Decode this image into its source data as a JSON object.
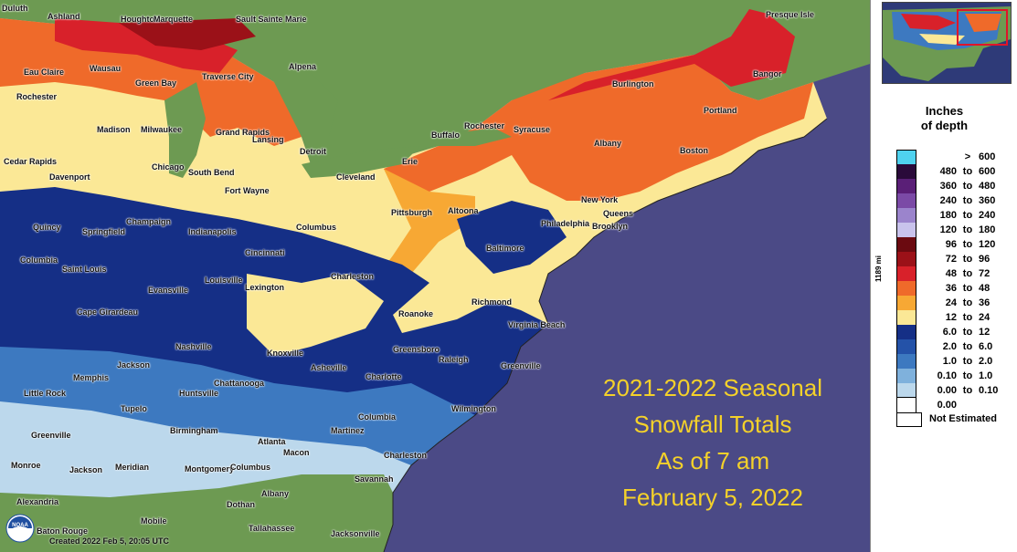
{
  "title": {
    "line1": "2021-2022 Seasonal",
    "line2": "Snowfall Totals",
    "line3": "As of 7 am",
    "line4": "February 5, 2022"
  },
  "created_text": "Created 2022 Feb 5, 20:05 UTC",
  "logo_text": "NOAA",
  "scale_label": "1189 mi",
  "legend": {
    "title_line1": "Inches",
    "title_line2": "of depth",
    "not_estimated": "Not Estimated",
    "rows": [
      {
        "lo": "",
        "to": ">",
        "hi": "600",
        "color": "#4fd2ef"
      },
      {
        "lo": "480",
        "to": "to",
        "hi": "600",
        "color": "#2a0a3a"
      },
      {
        "lo": "360",
        "to": "to",
        "hi": "480",
        "color": "#5a1f77"
      },
      {
        "lo": "240",
        "to": "to",
        "hi": "360",
        "color": "#7b4aa6"
      },
      {
        "lo": "180",
        "to": "to",
        "hi": "240",
        "color": "#9b84cc"
      },
      {
        "lo": "120",
        "to": "to",
        "hi": "180",
        "color": "#c9c3ec"
      },
      {
        "lo": "96",
        "to": "to",
        "hi": "120",
        "color": "#6b0a10"
      },
      {
        "lo": "72",
        "to": "to",
        "hi": "96",
        "color": "#9b1118"
      },
      {
        "lo": "48",
        "to": "to",
        "hi": "72",
        "color": "#d8212a"
      },
      {
        "lo": "36",
        "to": "to",
        "hi": "48",
        "color": "#ef6a2a"
      },
      {
        "lo": "24",
        "to": "to",
        "hi": "36",
        "color": "#f7a834"
      },
      {
        "lo": "12",
        "to": "to",
        "hi": "24",
        "color": "#fbe896"
      },
      {
        "lo": "6.0",
        "to": "to",
        "hi": "12",
        "color": "#152f86"
      },
      {
        "lo": "2.0",
        "to": "to",
        "hi": "6.0",
        "color": "#2452a8"
      },
      {
        "lo": "1.0",
        "to": "to",
        "hi": "2.0",
        "color": "#3d79c0"
      },
      {
        "lo": "0.10",
        "to": "to",
        "hi": "1.0",
        "color": "#7fb1dc"
      },
      {
        "lo": "0.00",
        "to": "to",
        "hi": "0.10",
        "color": "#bcd8ec"
      },
      {
        "lo": "0.00",
        "to": "",
        "hi": "",
        "color": "#ffffff"
      }
    ]
  },
  "colors": {
    "ocean": "#4b4a86",
    "land_no_snow": "#6d9a52",
    "title_text": "#f4d12a",
    "great_lakes": "#6d9a52"
  },
  "cities": [
    {
      "name": "Duluth"
    },
    {
      "name": "Ashland"
    },
    {
      "name": "Houghton"
    },
    {
      "name": "Marquette"
    },
    {
      "name": "Sault Sainte Marie"
    },
    {
      "name": "Presque Isle"
    },
    {
      "name": "Eau Claire"
    },
    {
      "name": "Wausau"
    },
    {
      "name": "Alpena"
    },
    {
      "name": "Traverse City"
    },
    {
      "name": "Green Bay"
    },
    {
      "name": "Bangor"
    },
    {
      "name": "Rochester"
    },
    {
      "name": "Burlington"
    },
    {
      "name": "Portland"
    },
    {
      "name": "Madison"
    },
    {
      "name": "Milwaukee"
    },
    {
      "name": "Grand Rapids"
    },
    {
      "name": "Lansing"
    },
    {
      "name": "Rochester"
    },
    {
      "name": "Syracuse"
    },
    {
      "name": "Buffalo"
    },
    {
      "name": "Albany"
    },
    {
      "name": "Boston"
    },
    {
      "name": "Detroit"
    },
    {
      "name": "Cedar Rapids"
    },
    {
      "name": "Chicago"
    },
    {
      "name": "South Bend"
    },
    {
      "name": "Erie"
    },
    {
      "name": "Davenport"
    },
    {
      "name": "Cleveland"
    },
    {
      "name": "Fort Wayne"
    },
    {
      "name": "New York"
    },
    {
      "name": "Queens"
    },
    {
      "name": "Brooklyn"
    },
    {
      "name": "Pittsburgh"
    },
    {
      "name": "Altoona"
    },
    {
      "name": "Philadelphia"
    },
    {
      "name": "Quincy"
    },
    {
      "name": "Champaign"
    },
    {
      "name": "Springfield"
    },
    {
      "name": "Indianapolis"
    },
    {
      "name": "Columbus"
    },
    {
      "name": "Columbia"
    },
    {
      "name": "Cincinnati"
    },
    {
      "name": "Baltimore"
    },
    {
      "name": "Saint Louis"
    },
    {
      "name": "Charleston"
    },
    {
      "name": "Louisville"
    },
    {
      "name": "Lexington"
    },
    {
      "name": "Evansville"
    },
    {
      "name": "Richmond"
    },
    {
      "name": "Cape Girardeau"
    },
    {
      "name": "Roanoke"
    },
    {
      "name": "Virginia Beach"
    },
    {
      "name": "Nashville"
    },
    {
      "name": "Knoxville"
    },
    {
      "name": "Greensboro"
    },
    {
      "name": "Jackson"
    },
    {
      "name": "Raleigh"
    },
    {
      "name": "Greenville"
    },
    {
      "name": "Asheville"
    },
    {
      "name": "Memphis"
    },
    {
      "name": "Charlotte"
    },
    {
      "name": "Chattanooga"
    },
    {
      "name": "Little Rock"
    },
    {
      "name": "Huntsville"
    },
    {
      "name": "Tupelo"
    },
    {
      "name": "Wilmington"
    },
    {
      "name": "Columbia"
    },
    {
      "name": "Greenville"
    },
    {
      "name": "Birmingham"
    },
    {
      "name": "Martinez"
    },
    {
      "name": "Atlanta"
    },
    {
      "name": "Macon"
    },
    {
      "name": "Charleston"
    },
    {
      "name": "Monroe"
    },
    {
      "name": "Jackson"
    },
    {
      "name": "Meridian"
    },
    {
      "name": "Montgomery"
    },
    {
      "name": "Columbus"
    },
    {
      "name": "Savannah"
    },
    {
      "name": "Albany"
    },
    {
      "name": "Alexandria"
    },
    {
      "name": "Dothan"
    },
    {
      "name": "Mobile"
    },
    {
      "name": "Baton Rouge"
    },
    {
      "name": "Tallahassee"
    },
    {
      "name": "Jacksonville"
    }
  ]
}
